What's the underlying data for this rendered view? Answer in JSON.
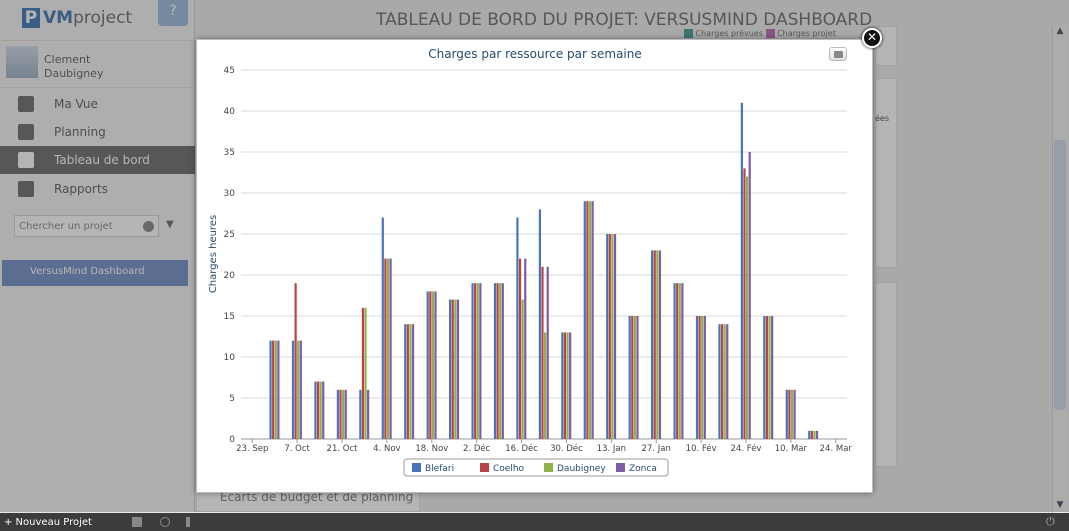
{
  "app": {
    "logo_prefix": "VM",
    "logo_suffix": "project",
    "help_label": "?",
    "user_name": "Clement Daubigney",
    "nav": [
      {
        "label": "Ma Vue",
        "icon": "user-icon"
      },
      {
        "label": "Planning",
        "icon": "calendar-icon"
      },
      {
        "label": "Tableau de bord",
        "icon": "pie-chart-icon"
      },
      {
        "label": "Rapports",
        "icon": "line-chart-icon"
      }
    ],
    "search_placeholder": "Chercher un projet",
    "project_item": "VersusMind Dashboard",
    "page_title": "TABLEAU DE BORD DU PROJET: VERSUSMIND DASHBOARD",
    "bg_panel_text": "Ecarts de budget et de planning",
    "bg_legend": [
      "Charges prévues",
      "Charges projet"
    ],
    "bg_right_text": "ées",
    "new_project_label": "+ Nouveau Projet"
  },
  "chart_data": {
    "type": "bar",
    "title": "Charges par ressource par semaine",
    "ylabel": "Charges heures",
    "xlabel": "",
    "ylim": [
      0,
      45
    ],
    "yticks": [
      0,
      5,
      10,
      15,
      20,
      25,
      30,
      35,
      40,
      45
    ],
    "grid": true,
    "legend_position": "bottom",
    "x_tick_labels": [
      "23. Sep",
      "7. Oct",
      "21. Oct",
      "4. Nov",
      "18. Nov",
      "2. Déc",
      "16. Déc",
      "30. Déc",
      "13. Jan",
      "27. Jan",
      "10. Fév",
      "24. Fév",
      "10. Mar",
      "24. Mar"
    ],
    "weeks": 27,
    "colors": [
      "#4b74b8",
      "#b84545",
      "#8fb04a",
      "#7a5ca8"
    ],
    "series": [
      {
        "name": "Blefari",
        "values": [
          0,
          12,
          12,
          7,
          6,
          6,
          27,
          14,
          18,
          17,
          19,
          19,
          27,
          28,
          13,
          29,
          25,
          15,
          23,
          19,
          15,
          14,
          41,
          15,
          6,
          1,
          0
        ]
      },
      {
        "name": "Coelho",
        "values": [
          0,
          12,
          19,
          7,
          6,
          16,
          22,
          14,
          18,
          17,
          19,
          19,
          22,
          21,
          13,
          29,
          25,
          15,
          23,
          19,
          15,
          14,
          33,
          15,
          6,
          1,
          0
        ]
      },
      {
        "name": "Daubigney",
        "values": [
          0,
          12,
          12,
          7,
          6,
          16,
          22,
          14,
          18,
          17,
          19,
          19,
          17,
          13,
          13,
          29,
          25,
          15,
          23,
          19,
          15,
          14,
          32,
          15,
          6,
          1,
          0
        ]
      },
      {
        "name": "Zonca",
        "values": [
          0,
          12,
          12,
          7,
          6,
          6,
          22,
          14,
          18,
          17,
          19,
          19,
          22,
          21,
          13,
          29,
          25,
          15,
          23,
          19,
          15,
          14,
          35,
          15,
          6,
          1,
          0
        ]
      }
    ]
  }
}
